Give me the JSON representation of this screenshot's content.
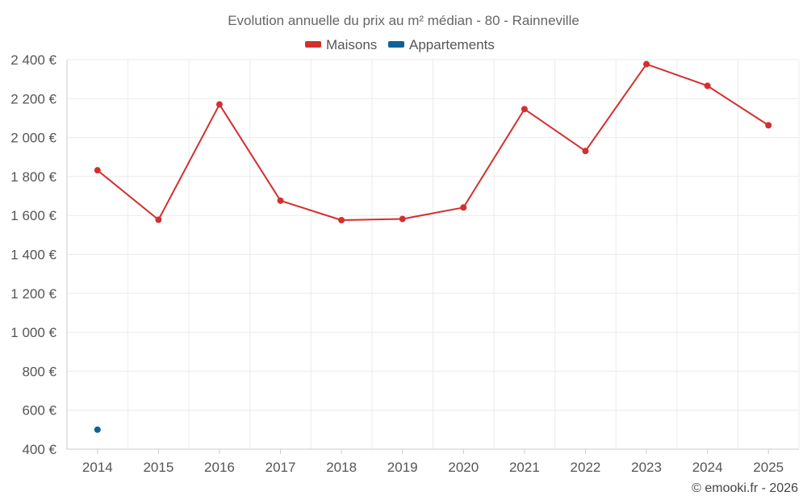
{
  "chart_data": {
    "type": "line",
    "title": "Evolution annuelle du prix au m² médian - 80 - Rainneville",
    "categories": [
      "2014",
      "2015",
      "2016",
      "2017",
      "2018",
      "2019",
      "2020",
      "2021",
      "2022",
      "2023",
      "2024",
      "2025"
    ],
    "ylim": [
      400,
      2400
    ],
    "yticks": [
      400,
      600,
      800,
      1000,
      1200,
      1400,
      1600,
      1800,
      2000,
      2200,
      2400
    ],
    "ytick_labels": [
      "400 €",
      "600 €",
      "800 €",
      "1 000 €",
      "1 200 €",
      "1 400 €",
      "1 600 €",
      "1 800 €",
      "2 000 €",
      "2 200 €",
      "2 400 €"
    ],
    "grid": true,
    "legend_position": "top-center",
    "series": [
      {
        "name": "Maisons",
        "color": "#d32f2f",
        "values": [
          1832,
          1578,
          2170,
          1676,
          1576,
          1582,
          1641,
          2146,
          1931,
          2377,
          2266,
          2063
        ]
      },
      {
        "name": "Appartements",
        "color": "#0f6296",
        "values": [
          500,
          null,
          null,
          null,
          null,
          null,
          null,
          null,
          null,
          null,
          null,
          null
        ]
      }
    ]
  },
  "credit": "© emooki.fr - 2026"
}
